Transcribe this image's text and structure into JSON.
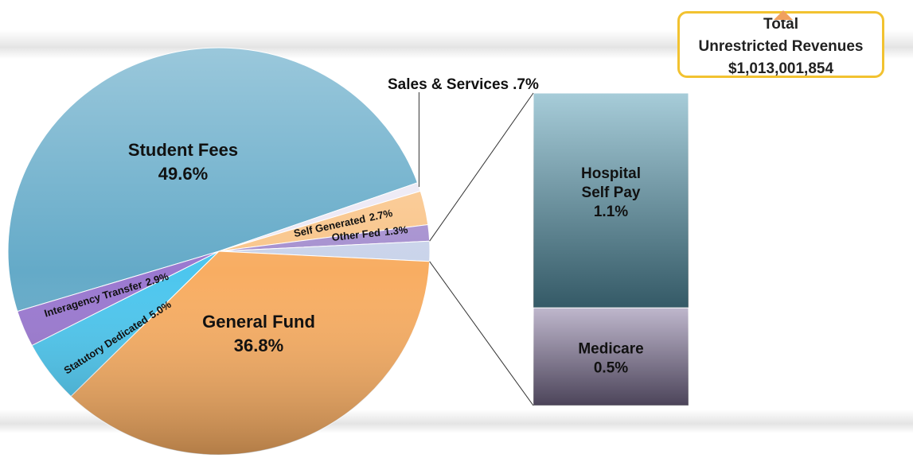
{
  "chart_data": {
    "type": "pie",
    "categories": [
      "Student Fees",
      "Sales & Services",
      "Self Generated",
      "Other Fed",
      "General Fund",
      "Statutory Dedicated",
      "Interagency Transfer"
    ],
    "values": [
      49.6,
      0.7,
      2.7,
      1.3,
      36.8,
      5.0,
      2.9
    ],
    "value_labels": [
      "49.6%",
      ".7%",
      "2.7%",
      "1.3%",
      "36.8%",
      "5.0%",
      "2.9%"
    ],
    "colors": [
      "#64aac8",
      "#ece8f4",
      "#f9c58a",
      "#a58fcf",
      "#f8ad62",
      "#4cc6ee",
      "#9a78d0"
    ],
    "breakdown": {
      "categories": [
        "Hospital Self Pay",
        "Medicare"
      ],
      "values": [
        1.1,
        0.5
      ],
      "value_labels": [
        "1.1%",
        "0.5%"
      ],
      "colors": [
        "#5fa3ba",
        "#8a7ca3"
      ]
    }
  },
  "header": {
    "title": "Total",
    "subtitle": "Unrestricted Revenues",
    "amount": "$1,013,001,854"
  }
}
